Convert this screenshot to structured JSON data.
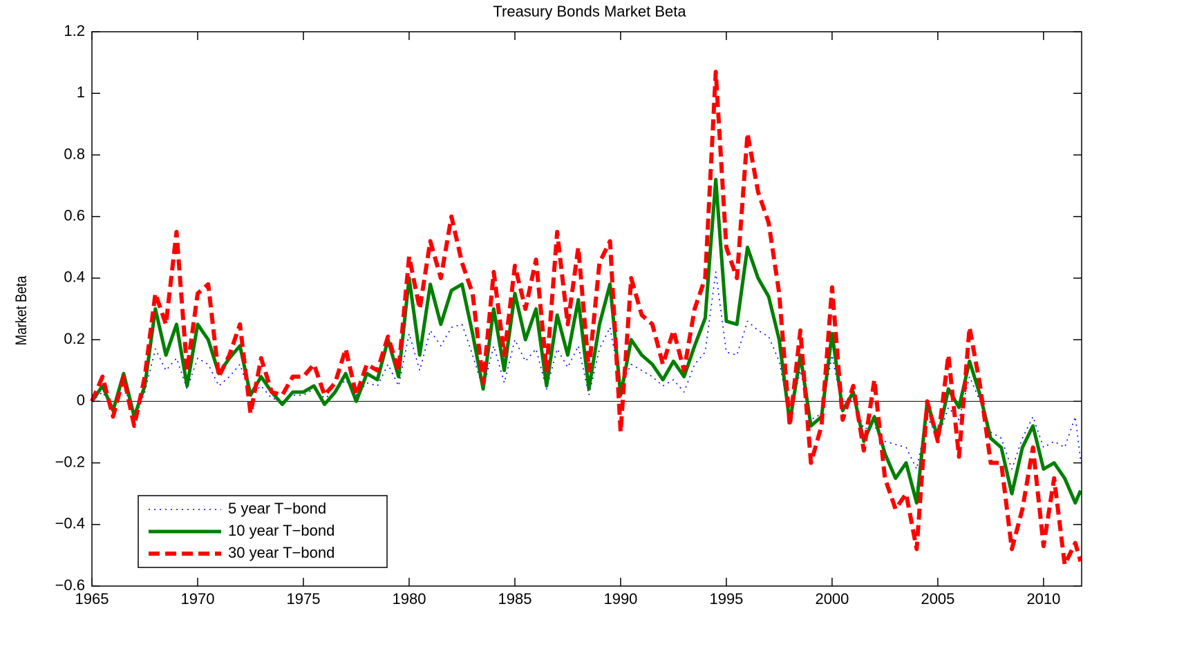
{
  "chart_data": {
    "type": "line",
    "title": "Treasury Bonds Market Beta",
    "y_label": "Market Beta",
    "x": [
      1965.0,
      1965.5,
      1966.0,
      1966.5,
      1967.0,
      1967.5,
      1968.0,
      1968.5,
      1969.0,
      1969.5,
      1970.0,
      1970.5,
      1971.0,
      1971.5,
      1972.0,
      1972.5,
      1973.0,
      1973.5,
      1974.0,
      1974.5,
      1975.0,
      1975.5,
      1976.0,
      1976.5,
      1977.0,
      1977.5,
      1978.0,
      1978.5,
      1979.0,
      1979.5,
      1980.0,
      1980.5,
      1981.0,
      1981.5,
      1982.0,
      1982.5,
      1983.0,
      1983.5,
      1984.0,
      1984.5,
      1985.0,
      1985.5,
      1986.0,
      1986.5,
      1987.0,
      1987.5,
      1988.0,
      1988.5,
      1989.0,
      1989.5,
      1990.0,
      1990.5,
      1991.0,
      1991.5,
      1992.0,
      1992.5,
      1993.0,
      1993.5,
      1994.0,
      1994.5,
      1995.0,
      1995.5,
      1996.0,
      1996.5,
      1997.0,
      1997.5,
      1998.0,
      1998.5,
      1999.0,
      1999.5,
      2000.0,
      2000.5,
      2001.0,
      2001.5,
      2002.0,
      2002.5,
      2003.0,
      2003.5,
      2004.0,
      2004.5,
      2005.0,
      2005.5,
      2006.0,
      2006.5,
      2007.0,
      2007.5,
      2008.0,
      2008.5,
      2009.0,
      2009.5,
      2010.0,
      2010.5,
      2011.0,
      2011.5,
      2011.75
    ],
    "series": [
      {
        "name": "5 year T−bond",
        "color": "#0000ff",
        "style": "dotted",
        "values": [
          0.0,
          0.03,
          -0.02,
          0.06,
          -0.06,
          0.03,
          0.17,
          0.1,
          0.14,
          0.04,
          0.14,
          0.12,
          0.05,
          0.08,
          0.12,
          0.02,
          0.05,
          0.01,
          0.0,
          0.02,
          0.02,
          0.04,
          0.01,
          0.03,
          0.07,
          0.02,
          0.06,
          0.05,
          0.12,
          0.05,
          0.22,
          0.1,
          0.23,
          0.18,
          0.24,
          0.25,
          0.15,
          0.04,
          0.18,
          0.06,
          0.2,
          0.13,
          0.17,
          0.04,
          0.17,
          0.11,
          0.18,
          0.02,
          0.17,
          0.24,
          0.05,
          0.12,
          0.1,
          0.08,
          0.05,
          0.07,
          0.03,
          0.12,
          0.16,
          0.42,
          0.16,
          0.15,
          0.26,
          0.23,
          0.21,
          0.13,
          -0.05,
          0.1,
          -0.06,
          -0.04,
          0.15,
          -0.03,
          0.01,
          -0.09,
          -0.08,
          -0.13,
          -0.14,
          -0.15,
          -0.22,
          -0.05,
          -0.12,
          -0.02,
          -0.06,
          0.08,
          0.0,
          -0.1,
          -0.12,
          -0.22,
          -0.12,
          -0.05,
          -0.15,
          -0.13,
          -0.15,
          -0.05,
          -0.19
        ]
      },
      {
        "name": "10 year T−bond",
        "color": "#007f00",
        "style": "solid",
        "values": [
          0.0,
          0.05,
          -0.03,
          0.09,
          -0.05,
          0.05,
          0.3,
          0.15,
          0.25,
          0.05,
          0.25,
          0.2,
          0.09,
          0.14,
          0.18,
          0.02,
          0.08,
          0.03,
          -0.01,
          0.03,
          0.03,
          0.05,
          -0.01,
          0.03,
          0.09,
          0.0,
          0.09,
          0.07,
          0.2,
          0.08,
          0.4,
          0.15,
          0.38,
          0.25,
          0.36,
          0.38,
          0.22,
          0.04,
          0.3,
          0.1,
          0.35,
          0.2,
          0.3,
          0.05,
          0.28,
          0.15,
          0.33,
          0.04,
          0.25,
          0.38,
          0.02,
          0.2,
          0.15,
          0.12,
          0.07,
          0.13,
          0.08,
          0.18,
          0.27,
          0.72,
          0.26,
          0.25,
          0.5,
          0.4,
          0.34,
          0.2,
          -0.07,
          0.15,
          -0.08,
          -0.05,
          0.22,
          -0.03,
          0.03,
          -0.13,
          -0.05,
          -0.17,
          -0.25,
          -0.2,
          -0.33,
          0.0,
          -0.12,
          0.04,
          -0.02,
          0.13,
          0.02,
          -0.12,
          -0.15,
          -0.3,
          -0.15,
          -0.08,
          -0.22,
          -0.2,
          -0.25,
          -0.33,
          -0.29
        ]
      },
      {
        "name": "30 year T−bond",
        "color": "#ff0000",
        "style": "dashed",
        "values": [
          0.0,
          0.08,
          -0.05,
          0.08,
          -0.08,
          0.08,
          0.35,
          0.25,
          0.55,
          0.1,
          0.35,
          0.38,
          0.08,
          0.15,
          0.25,
          -0.04,
          0.14,
          0.03,
          0.02,
          0.08,
          0.08,
          0.12,
          0.02,
          0.06,
          0.17,
          0.02,
          0.12,
          0.1,
          0.21,
          0.1,
          0.47,
          0.3,
          0.52,
          0.4,
          0.6,
          0.45,
          0.35,
          0.06,
          0.42,
          0.15,
          0.44,
          0.3,
          0.46,
          0.1,
          0.55,
          0.25,
          0.5,
          0.1,
          0.45,
          0.52,
          -0.1,
          0.4,
          0.28,
          0.25,
          0.12,
          0.23,
          0.1,
          0.3,
          0.4,
          1.07,
          0.5,
          0.4,
          0.87,
          0.68,
          0.58,
          0.35,
          -0.08,
          0.23,
          -0.2,
          -0.08,
          0.37,
          -0.06,
          0.05,
          -0.16,
          0.07,
          -0.25,
          -0.35,
          -0.3,
          -0.48,
          0.0,
          -0.13,
          0.15,
          -0.18,
          0.24,
          0.05,
          -0.2,
          -0.2,
          -0.48,
          -0.35,
          -0.15,
          -0.47,
          -0.25,
          -0.53,
          -0.46,
          -0.52
        ]
      }
    ],
    "xlim": [
      1965,
      2011.8
    ],
    "xticks": [
      1965,
      1970,
      1975,
      1980,
      1985,
      1990,
      1995,
      2000,
      2005,
      2010
    ],
    "ylim": [
      -0.6,
      1.2
    ],
    "yticks": [
      {
        "value": -0.6,
        "label": "−0.6"
      },
      {
        "value": -0.4,
        "label": "−0.4"
      },
      {
        "value": -0.2,
        "label": "−0.2"
      },
      0,
      0.2,
      0.4,
      0.6,
      0.8,
      1,
      1.2
    ],
    "legend": "lower left"
  }
}
